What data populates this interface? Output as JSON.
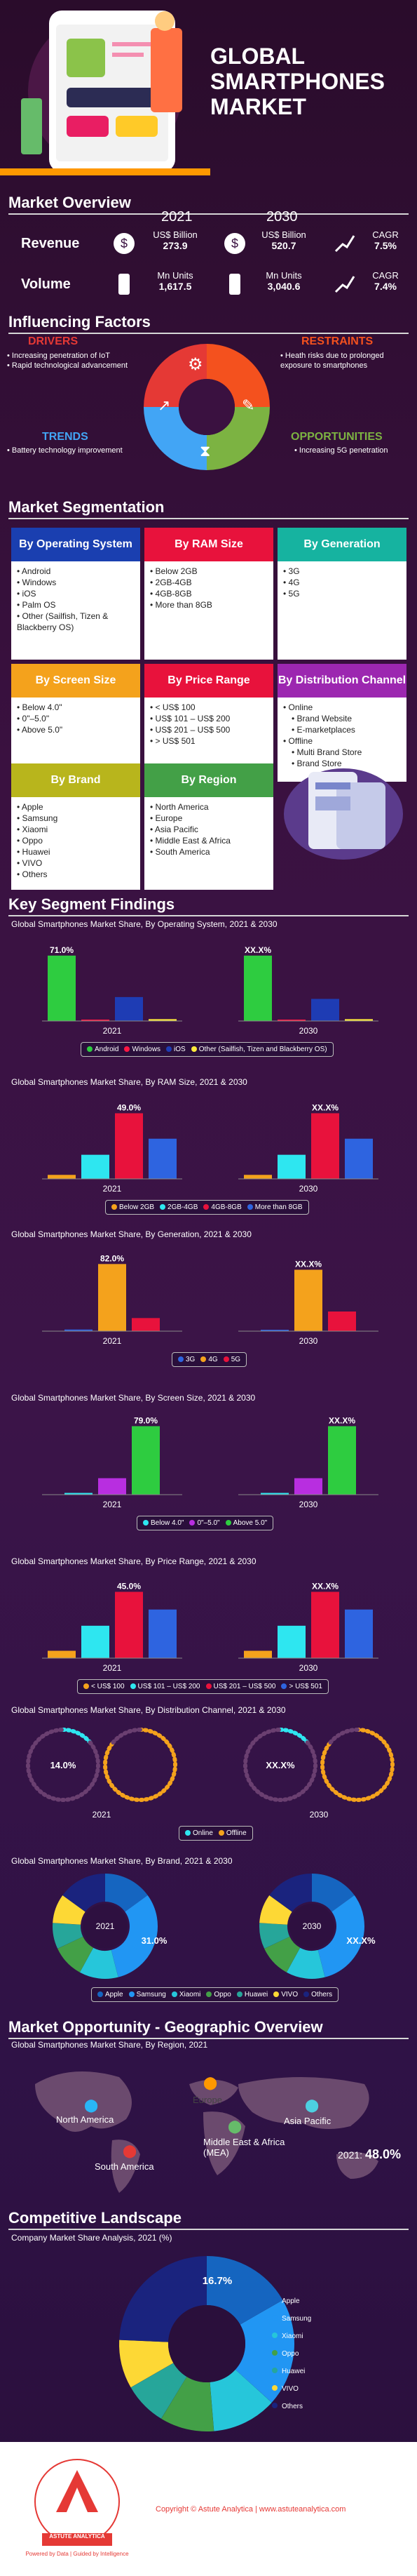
{
  "title": {
    "line1": "GLOBAL",
    "line2": "SMARTPHONES",
    "line3": "MARKET"
  },
  "overview": {
    "header": "Market Overview",
    "year_a": "2021",
    "year_b": "2030",
    "revenue_label": "Revenue",
    "volume_label": "Volume",
    "rev_unit": "US$ Billion",
    "rev_a": "273.9",
    "rev_b": "520.7",
    "vol_unit": "Mn Units",
    "vol_a": "1,617.5",
    "vol_b": "3,040.6",
    "cagr_label": "CAGR",
    "rev_cagr": "7.5%",
    "vol_cagr": "7.4%"
  },
  "factors": {
    "header": "Influencing Factors",
    "drivers_title": "DRIVERS",
    "drivers": [
      "Increasing penetration of IoT",
      "Rapid technological advancement"
    ],
    "restraints_title": "RESTRAINTS",
    "restraints": [
      "Heath risks due to prolonged exposure to smartphones"
    ],
    "trends_title": "TRENDS",
    "trends": [
      "Battery technology improvement"
    ],
    "opportunities_title": "OPPORTUNITIES",
    "opportunities": [
      "Increasing 5G penetration"
    ],
    "colors": {
      "drivers": "#e53935",
      "restraints": "#f4511e",
      "trends": "#42a5f5",
      "opportunities": "#7cb342"
    }
  },
  "segmentation": {
    "header": "Market Segmentation",
    "os": {
      "title": "By Operating System",
      "items": [
        "Android",
        "Windows",
        "iOS",
        "Palm OS",
        "Other (Sailfish, Tizen & Blackberry OS)"
      ]
    },
    "ram": {
      "title": "By RAM Size",
      "items": [
        "Below 2GB",
        "2GB-4GB",
        "4GB-8GB",
        "More than 8GB"
      ]
    },
    "gen": {
      "title": "By Generation",
      "items": [
        "3G",
        "4G",
        "5G"
      ]
    },
    "screen": {
      "title": "By Screen Size",
      "items": [
        "Below 4.0\"",
        "0\"–5.0\"",
        "Above 5.0\""
      ]
    },
    "price": {
      "title": "By Price Range",
      "items": [
        "< US$ 100",
        "US$ 101 – US$ 200",
        "US$ 201 – US$ 500",
        "> US$ 501"
      ]
    },
    "dist": {
      "title": "By Distribution Channel",
      "items": [
        "Online",
        "Brand Website",
        "E-marketplaces",
        "Offline",
        "Multi Brand Store",
        "Brand Store"
      ]
    },
    "brand": {
      "title": "By Brand",
      "items": [
        "Apple",
        "Samsung",
        "Xiaomi",
        "Oppo",
        "Huawei",
        "VIVO",
        "Others"
      ]
    },
    "region": {
      "title": "By Region",
      "items": [
        "North America",
        "Europe",
        "Asia Pacific",
        "Middle East & Africa",
        "South America"
      ]
    }
  },
  "findings": {
    "header": "Key Segment Findings"
  },
  "chart_data": [
    {
      "type": "bar",
      "title": "Global Smartphones Market Share, By Operating System, 2021 & 2030",
      "categories": [
        "2021",
        "2030"
      ],
      "series": [
        {
          "name": "Android",
          "values": [
            71.0,
            71.0
          ]
        },
        {
          "name": "Windows",
          "values": [
            1.0,
            1.0
          ]
        },
        {
          "name": "iOS",
          "values": [
            26.0,
            24.0
          ]
        },
        {
          "name": "Other (Sailfish, Tizen and Blackberry OS)",
          "values": [
            2.0,
            2.0
          ]
        }
      ],
      "labels": [
        "71.0%",
        "XX.X%"
      ],
      "colors": [
        "#2ecc40",
        "#ff1744",
        "#1e3cb4",
        "#ffeb3b"
      ],
      "ylim": [
        0,
        80
      ]
    },
    {
      "type": "bar",
      "title": "Global Smartphones Market Share, By RAM Size, 2021 & 2030",
      "categories": [
        "2021",
        "2030"
      ],
      "series": [
        {
          "name": "Below 2GB",
          "values": [
            3,
            3
          ]
        },
        {
          "name": "2GB-4GB",
          "values": [
            18,
            18
          ]
        },
        {
          "name": "4GB-8GB",
          "values": [
            49.0,
            49.0
          ]
        },
        {
          "name": "More than 8GB",
          "values": [
            30,
            30
          ]
        }
      ],
      "labels": [
        "49.0%",
        "XX.X%"
      ],
      "colors": [
        "#f4a21c",
        "#2ee6f0",
        "#e8123c",
        "#2e64e0"
      ],
      "ylim": [
        0,
        55
      ]
    },
    {
      "type": "bar",
      "title": "Global Smartphones Market Share, By Generation, 2021 & 2030",
      "categories": [
        "2021",
        "2030"
      ],
      "series": [
        {
          "name": "3G",
          "values": [
            2,
            1
          ]
        },
        {
          "name": "4G",
          "values": [
            82.0,
            75
          ]
        },
        {
          "name": "5G",
          "values": [
            16,
            24
          ]
        }
      ],
      "labels": [
        "82.0%",
        "XX.X%"
      ],
      "colors": [
        "#2e64e0",
        "#f4a21c",
        "#e8123c"
      ],
      "ylim": [
        0,
        90
      ]
    },
    {
      "type": "bar",
      "title": "Global Smartphones Market Share, By Screen Size, 2021 & 2030",
      "categories": [
        "2021",
        "2030"
      ],
      "series": [
        {
          "name": "Below 4.0\"",
          "values": [
            2,
            2
          ]
        },
        {
          "name": "0\"–5.0\"",
          "values": [
            19,
            19
          ]
        },
        {
          "name": "Above 5.0\"",
          "values": [
            79.0,
            79.0
          ]
        }
      ],
      "labels": [
        "79.0%",
        "XX.X%"
      ],
      "colors": [
        "#2ee6f0",
        "#b82ee0",
        "#2ecc40"
      ],
      "ylim": [
        0,
        85
      ]
    },
    {
      "type": "bar",
      "title": "Global Smartphones Market Share, By Price Range, 2021 & 2030",
      "categories": [
        "2021",
        "2030"
      ],
      "series": [
        {
          "name": "< US$ 100",
          "values": [
            5,
            5
          ]
        },
        {
          "name": "US$ 101 – US$ 200",
          "values": [
            22,
            22
          ]
        },
        {
          "name": "US$ 201 – US$ 500",
          "values": [
            45.0,
            45.0
          ]
        },
        {
          "name": "> US$ 501",
          "values": [
            33,
            33
          ]
        }
      ],
      "labels": [
        "45.0%",
        "XX.X%"
      ],
      "colors": [
        "#f4a21c",
        "#2ee6f0",
        "#e8123c",
        "#2e64e0"
      ],
      "ylim": [
        0,
        50
      ]
    },
    {
      "type": "pie",
      "title": "Global Smartphones Market Share, By Distribution Channel, 2021 & 2030",
      "categories": [
        "Online",
        "Offline"
      ],
      "series": [
        {
          "name": "2021",
          "values": [
            14.0,
            86.0
          ]
        },
        {
          "name": "2030",
          "values": [
            14.0,
            86.0
          ]
        }
      ],
      "labels": [
        "14.0%",
        "XX.X%"
      ],
      "colors": [
        "#2ee6f0",
        "#f4a21c"
      ]
    },
    {
      "type": "pie",
      "title": "Global Smartphones Market Share, By Brand, 2021 & 2030",
      "categories": [
        "Apple",
        "Samsung",
        "Xiaomi",
        "Oppo",
        "Huawei",
        "VIVO",
        "Others"
      ],
      "series": [
        {
          "name": "2021",
          "values": [
            15,
            31.0,
            12,
            10,
            8,
            9,
            15
          ]
        },
        {
          "name": "2030",
          "values": [
            15,
            31.0,
            12,
            10,
            8,
            9,
            15
          ]
        }
      ],
      "labels": [
        "31.0%",
        "XX.X%"
      ],
      "colors": [
        "#1565c0",
        "#2196f3",
        "#26c6da",
        "#43a047",
        "#26a69a",
        "#fdd835",
        "#1a237e"
      ]
    },
    {
      "type": "pie",
      "title": "Company Market Share Analysis, 2021 (%)",
      "categories": [
        "Apple",
        "Samsung",
        "Xiaomi",
        "Oppo",
        "Huawei",
        "VIVO",
        "Others"
      ],
      "series": [
        {
          "name": "2021",
          "values": [
            16.7,
            20,
            12,
            10,
            8,
            9,
            24.3
          ]
        }
      ],
      "labels": [
        "16.7%"
      ],
      "colors": [
        "#1565c0",
        "#2196f3",
        "#26c6da",
        "#43a047",
        "#26a69a",
        "#fdd835",
        "#1a237e"
      ]
    }
  ],
  "geo": {
    "header": "Market Opportunity - Geographic Overview",
    "chart_title": "Global Smartphones Market Share, By Region, 2021",
    "regions": [
      "North America",
      "Europe",
      "Middle East & Africa (MEA)",
      "Asia Pacific",
      "South America"
    ],
    "apac_label": "2021:",
    "apac_value": "48.0%"
  },
  "competitive": {
    "header": "Competitive Landscape"
  },
  "footer": {
    "copyright": "Copyright © Astute Analytica | www.astuteanalytica.com",
    "brand": "ASTUTE ANALYTICA",
    "tagline": "Powered by Data | Guided by Intelligence"
  }
}
